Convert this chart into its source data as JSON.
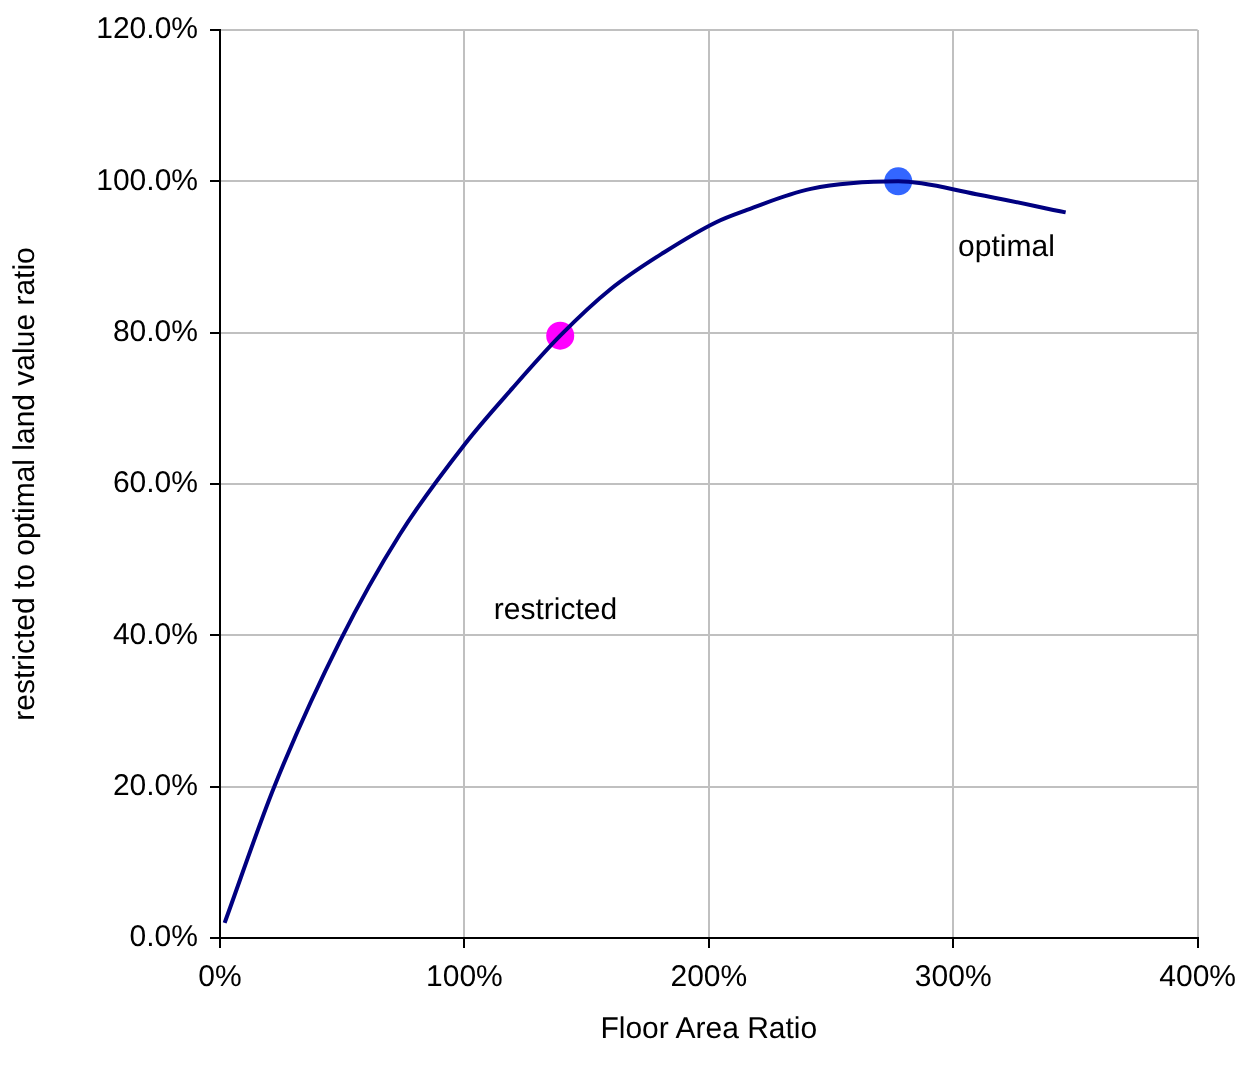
{
  "chart_data": {
    "type": "line",
    "xlabel": "Floor Area Ratio",
    "ylabel": "restricted to optimal land value ratio",
    "xlim": [
      0,
      400
    ],
    "ylim": [
      0,
      120
    ],
    "xticks": [
      {
        "value": 0,
        "label": "0%"
      },
      {
        "value": 100,
        "label": "100%"
      },
      {
        "value": 200,
        "label": "200%"
      },
      {
        "value": 300,
        "label": "300%"
      },
      {
        "value": 400,
        "label": "400%"
      }
    ],
    "yticks": [
      {
        "value": 0,
        "label": "0.0%"
      },
      {
        "value": 20,
        "label": "20.0%"
      },
      {
        "value": 40,
        "label": "40.0%"
      },
      {
        "value": 60,
        "label": "60.0%"
      },
      {
        "value": 80,
        "label": "80.0%"
      },
      {
        "value": 100,
        "label": "100.0%"
      },
      {
        "value": 120,
        "label": "120.0%"
      }
    ],
    "grid": true,
    "series": [
      {
        "color": "#000080",
        "marker": "none",
        "line_style": "solid",
        "x": [
          1.9,
          22.2,
          49.2,
          73.5,
          100,
          119.5,
          139.2,
          160,
          181.6,
          203,
          214.6,
          241.7,
          277.5,
          309.5,
          346
        ],
        "values": [
          2.0,
          20,
          39.3,
          53.3,
          65.2,
          72.6,
          79.6,
          85.8,
          90.6,
          94.6,
          96.1,
          99.0,
          100,
          98.3,
          95.9
        ]
      },
      {
        "type": "scatter",
        "marker": "circle",
        "colors": [
          "#ff00ff",
          "#3366ff"
        ],
        "x": [
          139.2,
          277.5
        ],
        "values": [
          79.6,
          100
        ]
      }
    ],
    "annotations": [
      "restricted",
      "optimal"
    ]
  }
}
